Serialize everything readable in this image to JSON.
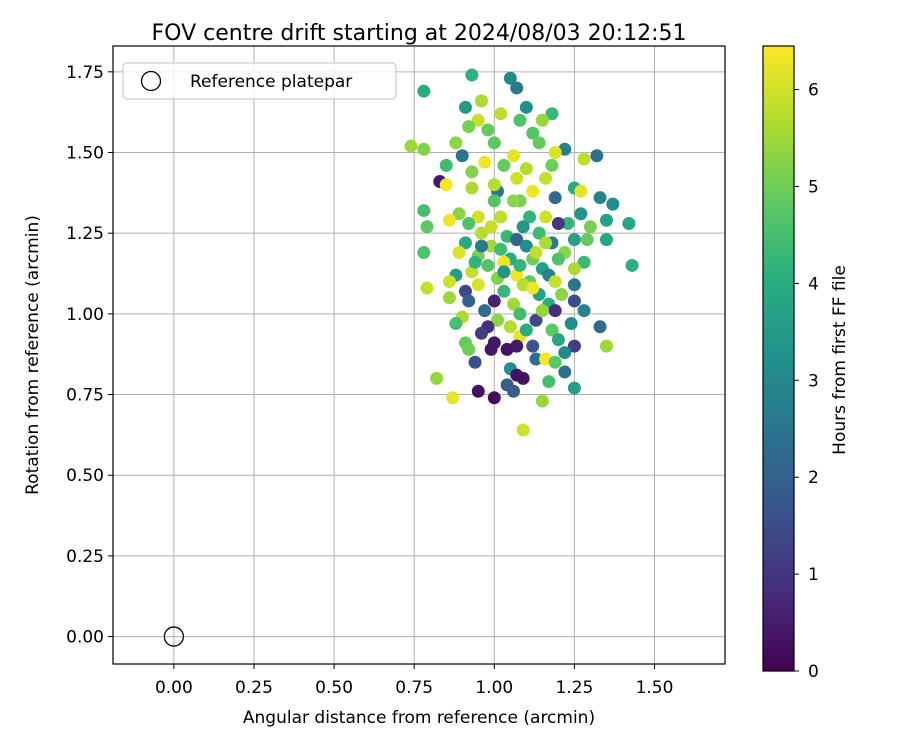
{
  "chart_data": {
    "type": "scatter",
    "title": "FOV centre drift starting at 2024/08/03 20:12:51",
    "xlabel": "Angular distance from reference (arcmin)",
    "ylabel": "Rotation from reference (arcmin)",
    "xlim": [
      -0.19,
      1.72
    ],
    "ylim": [
      -0.085,
      1.83
    ],
    "xticks": [
      0.0,
      0.25,
      0.5,
      0.75,
      1.0,
      1.25,
      1.5
    ],
    "xtick_labels": [
      "0.00",
      "0.25",
      "0.50",
      "0.75",
      "1.00",
      "1.25",
      "1.50"
    ],
    "yticks": [
      0.0,
      0.25,
      0.5,
      0.75,
      1.0,
      1.25,
      1.5,
      1.75
    ],
    "ytick_labels": [
      "0.00",
      "0.25",
      "0.50",
      "0.75",
      "1.00",
      "1.25",
      "1.50",
      "1.75"
    ],
    "grid": true,
    "legend": {
      "placement": "top-left",
      "entries": [
        "Reference platepar"
      ]
    },
    "reference_point": {
      "x": 0.0,
      "y": 0.0,
      "label": "Reference platepar"
    },
    "colorbar": {
      "label": "Hours from first FF file",
      "colormap": "viridis",
      "range": [
        0,
        6.45
      ],
      "ticks": [
        0,
        1,
        2,
        3,
        4,
        5,
        6
      ],
      "tick_labels": [
        "0",
        "1",
        "2",
        "3",
        "4",
        "5",
        "6"
      ]
    },
    "series": [
      {
        "points": [
          [
            0.93,
            1.74,
            4.1
          ],
          [
            1.05,
            1.73,
            3.0
          ],
          [
            1.07,
            1.7,
            2.6
          ],
          [
            0.78,
            1.69,
            4.0
          ],
          [
            0.96,
            1.66,
            5.6
          ],
          [
            0.91,
            1.64,
            3.5
          ],
          [
            1.1,
            1.64,
            3.2
          ],
          [
            1.18,
            1.62,
            4.3
          ],
          [
            1.02,
            1.62,
            5.8
          ],
          [
            0.95,
            1.6,
            5.9
          ],
          [
            1.08,
            1.6,
            4.6
          ],
          [
            1.15,
            1.6,
            5.4
          ],
          [
            0.92,
            1.58,
            5.1
          ],
          [
            0.98,
            1.57,
            4.9
          ],
          [
            1.12,
            1.56,
            4.7
          ],
          [
            1.22,
            1.51,
            2.8
          ],
          [
            1.32,
            1.49,
            2.4
          ],
          [
            1.19,
            1.5,
            6.1
          ],
          [
            0.74,
            1.52,
            5.5
          ],
          [
            0.78,
            1.51,
            5.2
          ],
          [
            0.88,
            1.53,
            5.3
          ],
          [
            1.0,
            1.53,
            4.8
          ],
          [
            1.06,
            1.49,
            6.2
          ],
          [
            1.14,
            1.53,
            4.9
          ],
          [
            0.9,
            1.49,
            2.5
          ],
          [
            1.28,
            1.48,
            5.8
          ],
          [
            0.97,
            1.47,
            6.3
          ],
          [
            1.18,
            1.46,
            5.0
          ],
          [
            0.85,
            1.46,
            4.4
          ],
          [
            1.03,
            1.46,
            4.9
          ],
          [
            1.1,
            1.45,
            5.7
          ],
          [
            1.07,
            1.42,
            6.0
          ],
          [
            0.93,
            1.44,
            5.2
          ],
          [
            1.16,
            1.42,
            5.9
          ],
          [
            0.83,
            1.41,
            0.4
          ],
          [
            0.85,
            1.4,
            6.4
          ],
          [
            0.93,
            1.39,
            5.6
          ],
          [
            1.01,
            1.38,
            2.5
          ],
          [
            1.25,
            1.39,
            4.0
          ],
          [
            1.27,
            1.38,
            6.2
          ],
          [
            1.33,
            1.36,
            2.9
          ],
          [
            1.37,
            1.34,
            3.1
          ],
          [
            1.08,
            1.35,
            5.1
          ],
          [
            1.19,
            1.36,
            2.2
          ],
          [
            1.0,
            1.35,
            4.7
          ],
          [
            0.78,
            1.32,
            4.5
          ],
          [
            0.89,
            1.31,
            5.3
          ],
          [
            0.95,
            1.3,
            6.0
          ],
          [
            1.02,
            1.3,
            5.8
          ],
          [
            1.11,
            1.3,
            4.2
          ],
          [
            1.16,
            1.3,
            6.0
          ],
          [
            1.27,
            1.31,
            3.3
          ],
          [
            1.35,
            1.29,
            3.7
          ],
          [
            1.23,
            1.28,
            4.2
          ],
          [
            0.86,
            1.29,
            6.3
          ],
          [
            0.92,
            1.28,
            4.6
          ],
          [
            1.2,
            1.28,
            1.0
          ],
          [
            1.3,
            1.27,
            5.1
          ],
          [
            0.79,
            1.27,
            4.8
          ],
          [
            1.42,
            1.28,
            3.8
          ],
          [
            0.96,
            1.25,
            5.7
          ],
          [
            1.04,
            1.24,
            4.3
          ],
          [
            1.14,
            1.25,
            4.4
          ],
          [
            1.07,
            1.23,
            2.1
          ],
          [
            1.25,
            1.23,
            3.7
          ],
          [
            0.91,
            1.22,
            3.9
          ],
          [
            1.18,
            1.22,
            2.7
          ],
          [
            1.29,
            1.23,
            4.9
          ],
          [
            1.35,
            1.23,
            3.8
          ],
          [
            0.99,
            1.21,
            5.5
          ],
          [
            1.1,
            1.21,
            3.1
          ],
          [
            0.89,
            1.19,
            6.1
          ],
          [
            1.22,
            1.19,
            5.3
          ],
          [
            0.78,
            1.19,
            4.6
          ],
          [
            0.95,
            1.18,
            5.1
          ],
          [
            1.05,
            1.17,
            4.0
          ],
          [
            1.12,
            1.17,
            5.0
          ],
          [
            1.03,
            1.16,
            6.3
          ],
          [
            1.2,
            1.17,
            4.6
          ],
          [
            1.28,
            1.16,
            4.3
          ],
          [
            1.43,
            1.15,
            4.1
          ],
          [
            0.98,
            1.15,
            4.7
          ],
          [
            1.15,
            1.14,
            3.6
          ],
          [
            1.25,
            1.14,
            5.6
          ],
          [
            0.93,
            1.13,
            5.9
          ],
          [
            1.07,
            1.12,
            6.3
          ],
          [
            1.17,
            1.12,
            2.8
          ],
          [
            0.88,
            1.12,
            3.6
          ],
          [
            1.01,
            1.11,
            5.2
          ],
          [
            1.11,
            1.1,
            4.9
          ],
          [
            0.86,
            1.1,
            6.0
          ],
          [
            0.95,
            1.09,
            6.1
          ],
          [
            1.09,
            1.09,
            5.7
          ],
          [
            1.25,
            1.09,
            2.5
          ],
          [
            0.79,
            1.08,
            5.9
          ],
          [
            0.91,
            1.07,
            1.4
          ],
          [
            1.03,
            1.07,
            4.3
          ],
          [
            1.14,
            1.06,
            3.7
          ],
          [
            1.21,
            1.06,
            5.3
          ],
          [
            0.86,
            1.05,
            5.5
          ],
          [
            0.92,
            1.04,
            2.0
          ],
          [
            1.0,
            1.04,
            0.6
          ],
          [
            1.06,
            1.03,
            5.5
          ],
          [
            1.17,
            1.03,
            4.0
          ],
          [
            1.25,
            1.04,
            1.5
          ],
          [
            0.97,
            1.01,
            2.3
          ],
          [
            1.08,
            1.0,
            4.4
          ],
          [
            1.19,
            1.01,
            0.8
          ],
          [
            1.28,
            1.01,
            2.9
          ],
          [
            0.9,
            0.99,
            5.6
          ],
          [
            1.01,
            0.98,
            5.3
          ],
          [
            1.13,
            0.98,
            1.4
          ],
          [
            1.24,
            0.97,
            3.1
          ],
          [
            0.88,
            0.97,
            4.5
          ],
          [
            0.98,
            0.96,
            0.9
          ],
          [
            1.05,
            0.96,
            5.7
          ],
          [
            1.18,
            0.95,
            4.8
          ],
          [
            1.33,
            0.96,
            2.3
          ],
          [
            0.96,
            0.94,
            1.2
          ],
          [
            1.08,
            0.93,
            6.2
          ],
          [
            1.2,
            0.92,
            3.8
          ],
          [
            0.91,
            0.91,
            4.9
          ],
          [
            1.0,
            0.91,
            0.4
          ],
          [
            1.12,
            0.9,
            1.7
          ],
          [
            1.25,
            0.9,
            1.2
          ],
          [
            1.35,
            0.9,
            5.5
          ],
          [
            0.92,
            0.89,
            5.0
          ],
          [
            0.99,
            0.89,
            0.4
          ],
          [
            1.04,
            0.89,
            0.3
          ],
          [
            1.07,
            0.9,
            0.4
          ],
          [
            1.22,
            0.88,
            3.0
          ],
          [
            1.13,
            0.86,
            2.3
          ],
          [
            1.16,
            0.86,
            6.4
          ],
          [
            0.94,
            0.85,
            1.6
          ],
          [
            1.19,
            0.85,
            4.8
          ],
          [
            1.05,
            0.83,
            3.2
          ],
          [
            1.22,
            0.82,
            2.4
          ],
          [
            1.07,
            0.81,
            0.3
          ],
          [
            0.82,
            0.8,
            5.4
          ],
          [
            1.09,
            0.8,
            0.3
          ],
          [
            1.17,
            0.79,
            4.5
          ],
          [
            1.04,
            0.78,
            1.9
          ],
          [
            1.25,
            0.77,
            3.6
          ],
          [
            0.95,
            0.76,
            0.3
          ],
          [
            1.06,
            0.76,
            1.9
          ],
          [
            0.87,
            0.74,
            6.2
          ],
          [
            1.0,
            0.74,
            0.2
          ],
          [
            1.15,
            0.73,
            5.4
          ],
          [
            1.09,
            0.64,
            6.0
          ],
          [
            1.12,
            1.38,
            6.3
          ],
          [
            1.0,
            1.4,
            5.7
          ],
          [
            1.06,
            1.35,
            5.3
          ],
          [
            1.16,
            1.22,
            5.6
          ],
          [
            0.99,
            1.27,
            5.9
          ],
          [
            1.09,
            1.27,
            3.4
          ],
          [
            1.02,
            1.2,
            4.4
          ],
          [
            0.96,
            1.21,
            2.6
          ],
          [
            1.13,
            1.19,
            5.8
          ],
          [
            1.08,
            1.15,
            4.2
          ],
          [
            1.19,
            1.1,
            5.9
          ],
          [
            0.94,
            1.16,
            4.2
          ],
          [
            1.03,
            1.13,
            3.3
          ],
          [
            1.12,
            1.08,
            6.3
          ],
          [
            1.15,
            1.01,
            5.4
          ],
          [
            1.1,
            0.95,
            4.0
          ]
        ]
      }
    ]
  }
}
